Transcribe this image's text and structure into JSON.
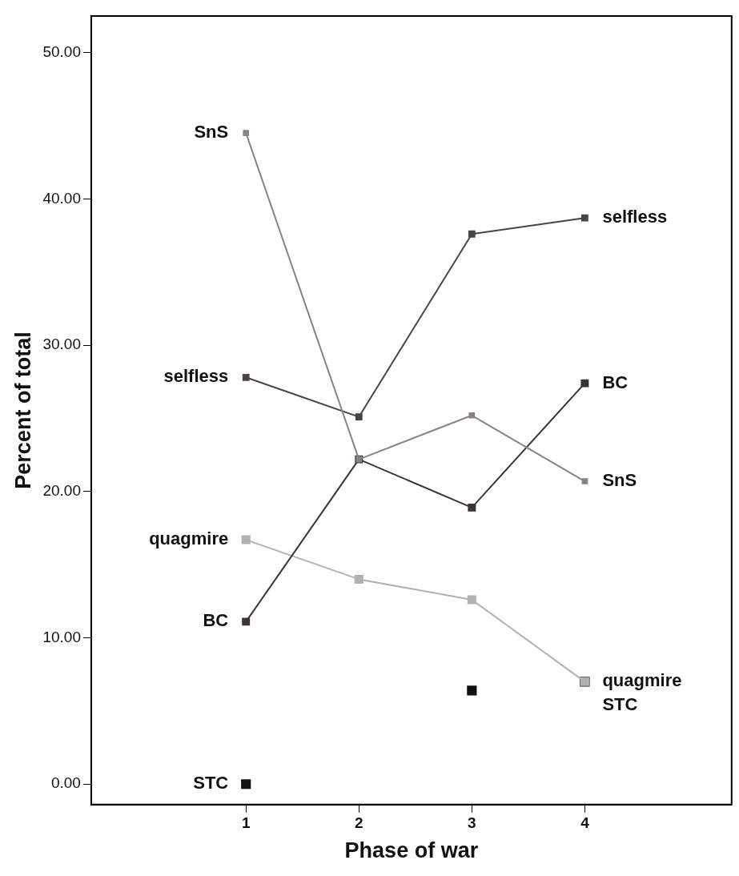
{
  "chart_data": {
    "type": "line",
    "xlabel": "Phase of war",
    "ylabel": "Percent of total",
    "x": [
      1,
      2,
      3,
      4
    ],
    "xlim": [
      -0.37,
      5.3
    ],
    "xticks": [
      1,
      2,
      3,
      4
    ],
    "ylim": [
      -1.4,
      52.5
    ],
    "yticks": [
      {
        "value": 0,
        "label": "0.00"
      },
      {
        "value": 10,
        "label": "10.00"
      },
      {
        "value": 20,
        "label": "20.00"
      },
      {
        "value": 30,
        "label": "30.00"
      },
      {
        "value": 40,
        "label": "40.00"
      },
      {
        "value": 50,
        "label": "50.00"
      }
    ],
    "grid": false,
    "legend": false,
    "marker": "square",
    "line_style": "solid",
    "series": [
      {
        "name": "SnS",
        "color": "#8a8288",
        "values": [
          44.5,
          22.2,
          25.2,
          20.7
        ]
      },
      {
        "name": "selfless",
        "color": "#4a4448",
        "values": [
          27.8,
          25.1,
          37.6,
          38.7
        ]
      },
      {
        "name": "BC",
        "color": "#3a3436",
        "values": [
          11.1,
          22.2,
          18.9,
          27.4
        ]
      },
      {
        "name": "quagmire",
        "color": "#b4b0b2",
        "values": [
          16.7,
          14.0,
          12.6,
          7.0
        ]
      },
      {
        "name": "STC",
        "type": "scatter",
        "color": "#111111",
        "values": [
          0,
          null,
          6.4,
          7.0
        ]
      }
    ]
  }
}
